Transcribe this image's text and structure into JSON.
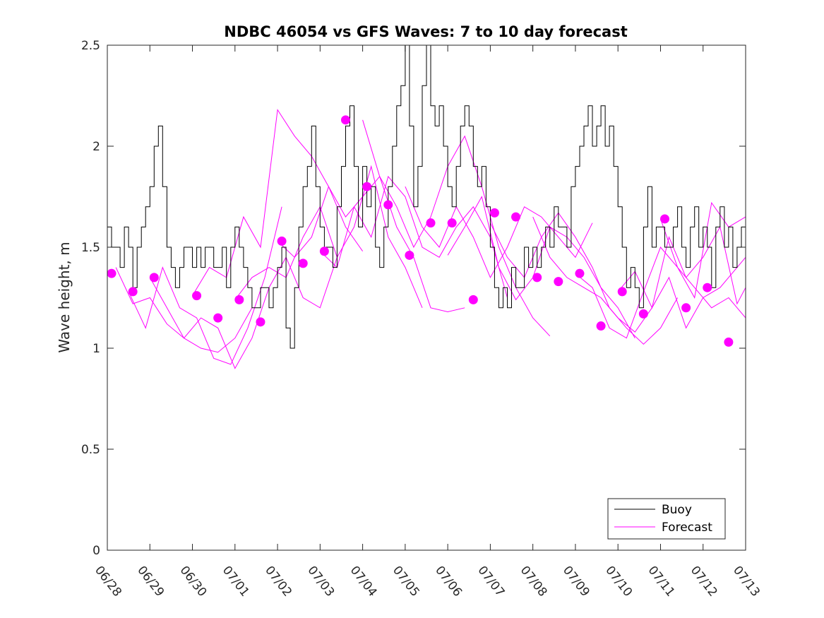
{
  "chart_data": {
    "type": "line",
    "title": "NDBC 46054 vs GFS Waves: 7 to 10 day forecast",
    "xlabel": "",
    "ylabel": "Wave height, m",
    "xlim": [
      "06/28",
      "07/13"
    ],
    "ylim": [
      0,
      2.5
    ],
    "x_ticks": [
      "06/28",
      "06/29",
      "06/30",
      "07/01",
      "07/02",
      "07/03",
      "07/04",
      "07/05",
      "07/06",
      "07/07",
      "07/08",
      "07/09",
      "07/10",
      "07/11",
      "07/12",
      "07/13"
    ],
    "y_ticks": [
      "0",
      "0.5",
      "1",
      "1.5",
      "2",
      "2.5"
    ],
    "y_tick_values": [
      0,
      0.5,
      1,
      1.5,
      2,
      2.5
    ],
    "grid": false,
    "legend": {
      "placement": "bottom-right",
      "entries": [
        "Buoy",
        "Forecast"
      ]
    },
    "colors": {
      "buoy": "#000000",
      "forecast": "#ff00ff",
      "axes": "#262626"
    },
    "series": [
      {
        "name": "Buoy",
        "style": "line",
        "x_days": [
          0,
          0.1,
          0.2,
          0.3,
          0.4,
          0.5,
          0.6,
          0.7,
          0.8,
          0.9,
          1,
          1.1,
          1.2,
          1.3,
          1.4,
          1.5,
          1.6,
          1.7,
          1.8,
          1.9,
          2,
          2.1,
          2.2,
          2.3,
          2.4,
          2.5,
          2.6,
          2.7,
          2.8,
          2.9,
          3,
          3.1,
          3.2,
          3.3,
          3.4,
          3.5,
          3.6,
          3.7,
          3.8,
          3.9,
          4,
          4.1,
          4.2,
          4.3,
          4.4,
          4.5,
          4.6,
          4.7,
          4.8,
          4.9,
          5,
          5.1,
          5.2,
          5.3,
          5.4,
          5.5,
          5.6,
          5.7,
          5.8,
          5.9,
          6,
          6.1,
          6.2,
          6.3,
          6.4,
          6.5,
          6.6,
          6.7,
          6.8,
          6.9,
          7,
          7.1,
          7.2,
          7.3,
          7.4,
          7.5,
          7.6,
          7.7,
          7.8,
          7.9,
          8,
          8.1,
          8.2,
          8.3,
          8.4,
          8.5,
          8.6,
          8.7,
          8.8,
          8.9,
          9,
          9.1,
          9.2,
          9.3,
          9.4,
          9.5,
          9.6,
          9.7,
          9.8,
          9.9,
          10,
          10.1,
          10.2,
          10.3,
          10.4,
          10.5,
          10.6,
          10.7,
          10.8,
          10.9,
          11,
          11.1,
          11.2,
          11.3,
          11.4,
          11.5,
          11.6,
          11.7,
          11.8,
          11.9,
          12,
          12.1,
          12.2,
          12.3,
          12.4,
          12.5,
          12.6,
          12.7,
          12.8,
          12.9,
          13,
          13.1,
          13.2,
          13.3,
          13.4,
          13.5,
          13.6,
          13.7,
          13.8,
          13.9,
          14,
          14.1,
          14.2,
          14.3,
          14.4,
          14.5,
          14.6,
          14.7,
          14.8,
          14.9,
          15
        ],
        "values": [
          1.6,
          1.5,
          1.5,
          1.4,
          1.6,
          1.5,
          1.3,
          1.5,
          1.6,
          1.7,
          1.8,
          2.0,
          2.1,
          1.8,
          1.5,
          1.4,
          1.3,
          1.4,
          1.5,
          1.5,
          1.4,
          1.5,
          1.4,
          1.5,
          1.5,
          1.4,
          1.4,
          1.5,
          1.3,
          1.5,
          1.6,
          1.5,
          1.4,
          1.3,
          1.2,
          1.2,
          1.3,
          1.3,
          1.2,
          1.3,
          1.4,
          1.5,
          1.1,
          1.0,
          1.3,
          1.6,
          1.8,
          1.9,
          2.1,
          1.8,
          1.6,
          1.5,
          1.5,
          1.4,
          1.7,
          1.9,
          2.1,
          2.2,
          1.9,
          1.6,
          1.9,
          1.7,
          1.8,
          1.5,
          1.4,
          1.6,
          1.8,
          2.0,
          2.2,
          2.3,
          2.5,
          2.1,
          1.7,
          1.9,
          2.3,
          2.5,
          2.2,
          2.1,
          2.2,
          2.0,
          1.8,
          1.7,
          1.9,
          2.1,
          2.2,
          2.1,
          1.9,
          1.8,
          1.9,
          1.7,
          1.5,
          1.3,
          1.2,
          1.3,
          1.2,
          1.4,
          1.3,
          1.3,
          1.5,
          1.4,
          1.5,
          1.4,
          1.5,
          1.6,
          1.5,
          1.7,
          1.6,
          1.6,
          1.5,
          1.8,
          1.9,
          2.0,
          2.1,
          2.2,
          2.0,
          2.1,
          2.2,
          2.0,
          2.1,
          1.9,
          1.7,
          1.5,
          1.3,
          1.4,
          1.3,
          1.2,
          1.6,
          1.8,
          1.5,
          1.6,
          1.6,
          1.5,
          1.5,
          1.6,
          1.7,
          1.5,
          1.4,
          1.6,
          1.7,
          1.5,
          1.6,
          1.5,
          1.3,
          1.6,
          1.7,
          1.5,
          1.6,
          1.4,
          1.5,
          1.6,
          1.5
        ]
      },
      {
        "name": "Forecast",
        "style": "markers",
        "x_days": [
          0.1,
          0.6,
          1.1,
          2.1,
          2.6,
          3.1,
          3.6,
          4.1,
          4.6,
          5.1,
          5.6,
          6.1,
          6.6,
          7.1,
          7.6,
          8.1,
          8.6,
          9.1,
          9.6,
          10.1,
          10.6,
          11.1,
          11.6,
          12.1,
          12.6,
          13.1,
          13.6,
          14.1,
          14.6
        ],
        "values": [
          1.37,
          1.28,
          1.35,
          1.26,
          1.15,
          1.24,
          1.13,
          1.53,
          1.42,
          1.48,
          2.13,
          1.8,
          1.71,
          1.46,
          1.62,
          1.62,
          1.24,
          1.67,
          1.65,
          1.35,
          1.33,
          1.37,
          1.11,
          1.28,
          1.17,
          1.64,
          1.2,
          1.3,
          1.03
        ]
      },
      {
        "name": "",
        "style": "line",
        "x_days": [
          0.2,
          0.6,
          1.0,
          1.4,
          1.8,
          2.2,
          2.6,
          3.0,
          3.4
        ],
        "values": [
          1.4,
          1.22,
          1.25,
          1.12,
          1.05,
          1.0,
          0.98,
          1.05,
          1.2
        ]
      },
      {
        "name": "",
        "style": "line",
        "x_days": [
          0.5,
          0.9,
          1.3,
          1.7,
          2.1,
          2.5,
          2.9,
          3.3,
          3.7,
          4.1
        ],
        "values": [
          1.28,
          1.1,
          1.4,
          1.2,
          1.15,
          0.95,
          0.92,
          1.1,
          1.35,
          1.7
        ]
      },
      {
        "name": "",
        "style": "line",
        "x_days": [
          1.0,
          1.4,
          1.8,
          2.2,
          2.6,
          3.0,
          3.4,
          3.8,
          4.2,
          4.6,
          5.0,
          5.4
        ],
        "values": [
          1.35,
          1.2,
          1.05,
          1.15,
          1.1,
          0.9,
          1.05,
          1.3,
          1.45,
          1.25,
          1.2,
          1.45
        ]
      },
      {
        "name": "",
        "style": "line",
        "x_days": [
          2.0,
          2.4,
          2.8,
          3.2,
          3.6,
          4.0,
          4.4,
          4.8,
          5.2,
          5.6,
          6.0
        ],
        "values": [
          1.26,
          1.4,
          1.35,
          1.65,
          1.5,
          2.18,
          2.05,
          1.95,
          1.8,
          1.6,
          1.48
        ]
      },
      {
        "name": "",
        "style": "line",
        "x_days": [
          3.0,
          3.4,
          3.8,
          4.2,
          4.6,
          5.0,
          5.4,
          5.8,
          6.2,
          6.6,
          7.0,
          7.4
        ],
        "values": [
          1.24,
          1.35,
          1.4,
          1.35,
          1.55,
          1.7,
          1.45,
          1.6,
          1.9,
          1.55,
          1.4,
          1.2
        ]
      },
      {
        "name": "",
        "style": "line",
        "x_days": [
          4.0,
          4.4,
          4.8,
          5.2,
          5.6,
          6.0,
          6.4,
          6.8,
          7.2,
          7.6,
          8.0,
          8.4
        ],
        "values": [
          1.53,
          1.45,
          1.55,
          1.8,
          1.65,
          1.75,
          1.85,
          1.6,
          1.45,
          1.2,
          1.18,
          1.2
        ]
      },
      {
        "name": "",
        "style": "line",
        "x_days": [
          5.0,
          5.4,
          5.8,
          6.2,
          6.6,
          7.0,
          7.4,
          7.8,
          8.2,
          8.6,
          9.0,
          9.4
        ],
        "values": [
          1.48,
          1.4,
          1.7,
          1.55,
          1.85,
          1.75,
          1.5,
          1.45,
          1.6,
          1.7,
          1.55,
          1.25
        ]
      },
      {
        "name": "",
        "style": "line",
        "x_days": [
          6.0,
          6.4,
          6.8,
          7.2,
          7.6,
          8.0,
          8.4,
          8.8,
          9.2,
          9.6,
          10.0,
          10.4
        ],
        "values": [
          2.13,
          1.85,
          1.7,
          1.5,
          1.65,
          1.9,
          2.05,
          1.8,
          1.5,
          1.3,
          1.15,
          1.06
        ]
      },
      {
        "name": "",
        "style": "line",
        "x_days": [
          7.0,
          7.4,
          7.8,
          8.2,
          8.6,
          9.0,
          9.4,
          9.8,
          10.2,
          10.6,
          11.0,
          11.4
        ],
        "values": [
          1.8,
          1.6,
          1.5,
          1.7,
          1.55,
          1.35,
          1.5,
          1.7,
          1.65,
          1.55,
          1.45,
          1.62
        ]
      },
      {
        "name": "",
        "style": "line",
        "x_days": [
          8.0,
          8.4,
          8.8,
          9.2,
          9.6,
          10.0,
          10.4,
          10.8,
          11.2,
          11.6,
          12.0,
          12.4
        ],
        "values": [
          1.46,
          1.6,
          1.75,
          1.4,
          1.24,
          1.35,
          1.6,
          1.55,
          1.45,
          1.3,
          1.2,
          1.05
        ]
      },
      {
        "name": "",
        "style": "line",
        "x_days": [
          9.0,
          9.4,
          9.8,
          10.2,
          10.6,
          11.0,
          11.4,
          11.8,
          12.2,
          12.6,
          13.0,
          13.4
        ],
        "values": [
          1.62,
          1.45,
          1.35,
          1.55,
          1.67,
          1.55,
          1.4,
          1.2,
          1.1,
          1.02,
          1.1,
          1.25
        ]
      },
      {
        "name": "",
        "style": "line",
        "x_days": [
          10.0,
          10.4,
          10.8,
          11.2,
          11.6,
          12.0,
          12.4,
          12.8,
          13.2,
          13.6,
          14.0,
          14.4,
          15.0
        ],
        "values": [
          1.65,
          1.45,
          1.35,
          1.3,
          1.25,
          1.15,
          1.08,
          1.2,
          1.35,
          1.1,
          1.25,
          1.3,
          1.45
        ]
      },
      {
        "name": "",
        "style": "line",
        "x_days": [
          11.0,
          11.4,
          11.8,
          12.2,
          12.6,
          13.0,
          13.4,
          13.8,
          14.2,
          14.6,
          15.0
        ],
        "values": [
          1.37,
          1.3,
          1.1,
          1.05,
          1.28,
          1.5,
          1.4,
          1.3,
          1.2,
          1.25,
          1.15
        ]
      },
      {
        "name": "",
        "style": "line",
        "x_days": [
          12.0,
          12.4,
          12.8,
          13.2,
          13.6,
          14.0,
          14.4,
          14.8,
          15.0
        ],
        "values": [
          1.28,
          1.38,
          1.2,
          1.55,
          1.35,
          1.45,
          1.6,
          1.22,
          1.3
        ]
      },
      {
        "name": "",
        "style": "line",
        "x_days": [
          13.0,
          13.4,
          13.8,
          14.2,
          14.6,
          15.0
        ],
        "values": [
          1.64,
          1.4,
          1.25,
          1.72,
          1.6,
          1.65
        ]
      }
    ]
  }
}
